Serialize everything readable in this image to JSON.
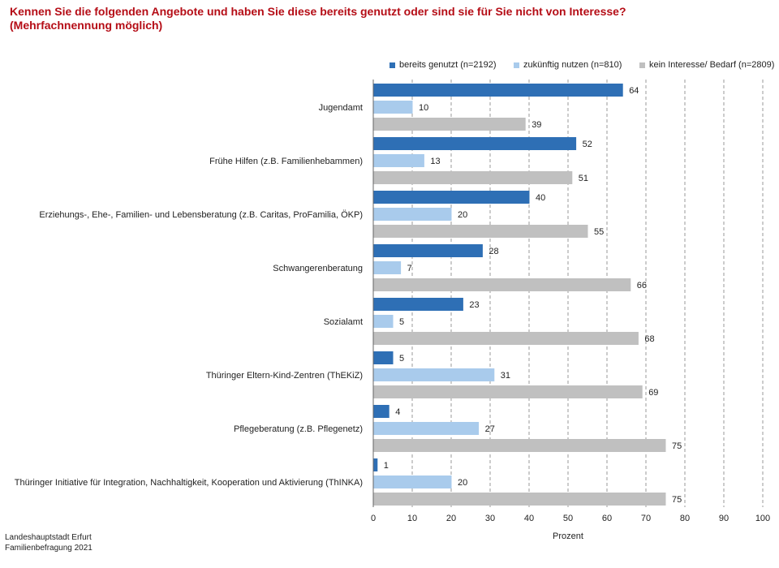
{
  "title_line1": "Kennen Sie die folgenden Angebote und haben Sie diese bereits genutzt oder sind sie für Sie nicht von Interesse?",
  "title_line2": "(Mehrfachnennung möglich)",
  "colors": {
    "series1": "#2e6fb5",
    "series2": "#a9cbec",
    "series3": "#c0c0c0",
    "title": "#b50d16"
  },
  "chart_data": {
    "type": "bar",
    "orientation": "horizontal",
    "categories": [
      "Jugendamt",
      "Frühe Hilfen (z.B. Familienhebammen)",
      "Erziehungs-, Ehe-, Familien- und Lebensberatung (z.B. Caritas, ProFamilia, ÖKP)",
      "Schwangerenberatung",
      "Sozialamt",
      "Thüringer Eltern-Kind-Zentren (ThEKiZ)",
      "Pflegeberatung (z.B. Pflegenetz)",
      "Thüringer Initiative für Integration, Nachhaltigkeit, Kooperation und Aktivierung (ThINKA)"
    ],
    "series": [
      {
        "name": "bereits genutzt (n=2192)",
        "values": [
          64,
          52,
          40,
          28,
          23,
          5,
          4,
          1
        ]
      },
      {
        "name": "zukünftig nutzen (n=810)",
        "values": [
          10,
          13,
          20,
          7,
          5,
          31,
          27,
          20
        ]
      },
      {
        "name": "kein Interesse/ Bedarf (n=2809)",
        "values": [
          39,
          51,
          55,
          66,
          68,
          69,
          75,
          75
        ]
      }
    ],
    "xlabel": "Prozent",
    "xlim": [
      0,
      100
    ],
    "xticks": [
      0,
      10,
      20,
      30,
      40,
      50,
      60,
      70,
      80,
      90,
      100
    ],
    "grid": "vertical-dashed",
    "legend": "top"
  },
  "footer": {
    "line1": "Landeshauptstadt Erfurt",
    "line2": "Familienbefragung 2021"
  }
}
